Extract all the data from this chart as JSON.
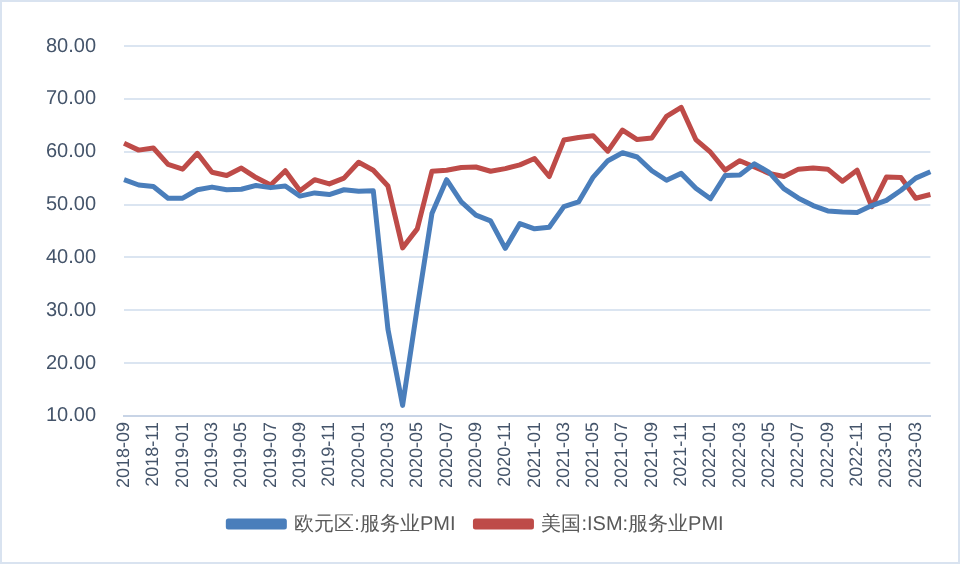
{
  "chart_data": {
    "type": "line",
    "categories": [
      "2018-09",
      null,
      "2018-11",
      null,
      "2019-01",
      null,
      "2019-03",
      null,
      "2019-05",
      null,
      "2019-07",
      null,
      "2019-09",
      null,
      "2019-11",
      null,
      "2020-01",
      null,
      "2020-03",
      null,
      "2020-05",
      null,
      "2020-07",
      null,
      "2020-09",
      null,
      "2020-11",
      null,
      "2021-01",
      null,
      "2021-03",
      null,
      "2021-05",
      null,
      "2021-07",
      null,
      "2021-09",
      null,
      "2021-11",
      null,
      "2022-01",
      null,
      "2022-03",
      null,
      "2022-05",
      null,
      "2022-07",
      null,
      "2022-09",
      null,
      "2022-11",
      null,
      "2023-01",
      null,
      "2023-03",
      null
    ],
    "series": [
      {
        "name": "欧元区:服务业PMI",
        "color": "#4a7ebb",
        "values": [
          54.7,
          53.7,
          53.4,
          51.2,
          51.2,
          52.8,
          53.3,
          52.8,
          52.9,
          53.6,
          53.2,
          53.5,
          51.6,
          52.2,
          51.9,
          52.8,
          52.5,
          52.6,
          26.4,
          12.0,
          30.5,
          48.3,
          54.7,
          50.5,
          48.0,
          46.9,
          41.7,
          46.4,
          45.4,
          45.7,
          49.6,
          50.5,
          55.2,
          58.3,
          59.8,
          59.0,
          56.4,
          54.6,
          55.9,
          53.1,
          51.1,
          55.5,
          55.6,
          57.7,
          56.1,
          53.0,
          51.2,
          49.8,
          48.8,
          48.6,
          48.5,
          49.8,
          50.8,
          52.7,
          55.0,
          56.2
        ]
      },
      {
        "name": "美国:ISM:服务业PMI",
        "color": "#be4b48",
        "values": [
          61.6,
          60.3,
          60.7,
          57.6,
          56.7,
          59.7,
          56.1,
          55.5,
          56.9,
          55.1,
          53.7,
          56.4,
          52.6,
          54.7,
          53.9,
          55.0,
          58.0,
          56.5,
          53.5,
          41.8,
          45.4,
          56.3,
          56.5,
          57.0,
          57.1,
          56.3,
          56.8,
          57.5,
          58.7,
          55.3,
          62.2,
          62.7,
          63.0,
          60.1,
          64.1,
          62.3,
          62.6,
          66.7,
          68.4,
          62.3,
          59.9,
          56.5,
          58.3,
          57.1,
          55.9,
          55.3,
          56.7,
          56.9,
          56.7,
          54.4,
          56.5,
          49.6,
          55.2,
          55.1,
          51.2,
          51.9
        ]
      }
    ],
    "ylim": [
      10,
      80
    ],
    "yticks": [
      {
        "value": 10,
        "label": "10.00"
      },
      {
        "value": 20,
        "label": "20.00"
      },
      {
        "value": 30,
        "label": "30.00"
      },
      {
        "value": 40,
        "label": "40.00"
      },
      {
        "value": 50,
        "label": "50.00"
      },
      {
        "value": 60,
        "label": "60.00"
      },
      {
        "value": 70,
        "label": "70.00"
      },
      {
        "value": 80,
        "label": "80.00"
      }
    ],
    "grid": "y",
    "legend": "bottom",
    "marker": "none",
    "line_style": "solid"
  }
}
